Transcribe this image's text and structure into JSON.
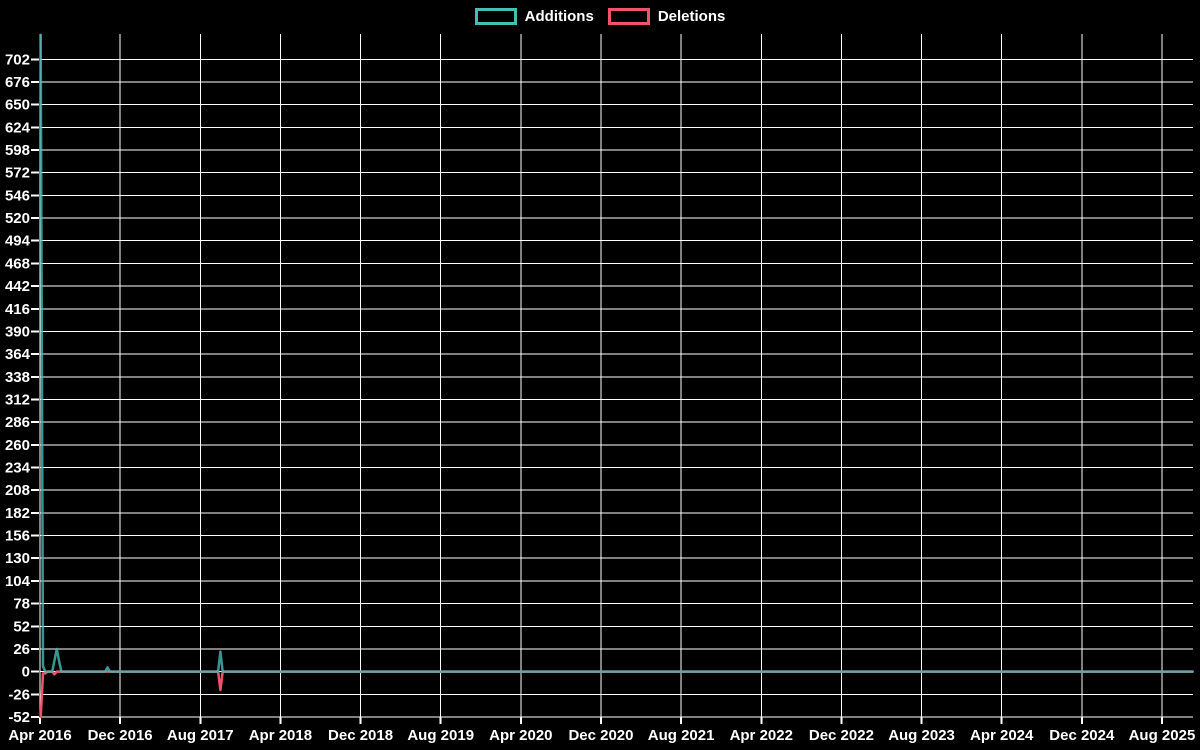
{
  "legend": {
    "items": [
      {
        "label": "Additions",
        "color": "#46BCB6"
      },
      {
        "label": "Deletions",
        "color": "#F1536B"
      }
    ]
  },
  "chart_data": {
    "type": "line",
    "title": "",
    "xlabel": "",
    "ylabel": "",
    "background_color": "#000000",
    "grid": true,
    "grid_color": "#FFFFFF",
    "tick_label_color": "#FFFFFF",
    "legend_position": "top-center",
    "x_axis": {
      "start": "2016-04-01",
      "tick_interval_months": 8,
      "tick_labels": [
        "Apr 2016",
        "Dec 2016",
        "Aug 2017",
        "Apr 2018",
        "Dec 2018",
        "Aug 2019",
        "Apr 2020",
        "Dec 2020",
        "Aug 2021",
        "Apr 2022",
        "Dec 2022",
        "Aug 2023",
        "Apr 2024",
        "Dec 2024",
        "Aug 2025"
      ]
    },
    "y_axis": {
      "min": -52,
      "max": 731,
      "tick_step": 26,
      "tick_labels": [
        702,
        676,
        650,
        624,
        598,
        572,
        546,
        520,
        494,
        468,
        442,
        416,
        390,
        364,
        338,
        312,
        286,
        260,
        234,
        208,
        182,
        156,
        130,
        104,
        78,
        52,
        26,
        0,
        -26,
        -52
      ]
    },
    "series": [
      {
        "name": "Additions",
        "color": "#46BCB6",
        "points": [
          [
            "2016-04-03",
            730
          ],
          [
            "2016-04-10",
            6
          ],
          [
            "2016-04-17",
            0
          ],
          [
            "2016-05-08",
            0
          ],
          [
            "2016-05-22",
            26
          ],
          [
            "2016-05-29",
            12
          ],
          [
            "2016-06-05",
            0
          ],
          [
            "2016-10-16",
            0
          ],
          [
            "2016-10-23",
            5
          ],
          [
            "2016-10-30",
            0
          ],
          [
            "2017-09-24",
            0
          ],
          [
            "2017-10-01",
            23
          ],
          [
            "2017-10-08",
            0
          ],
          [
            "2025-11-02",
            0
          ]
        ]
      },
      {
        "name": "Deletions",
        "color": "#F1536B",
        "points": [
          [
            "2016-04-03",
            -52
          ],
          [
            "2016-04-10",
            -2
          ],
          [
            "2016-04-17",
            -2
          ],
          [
            "2016-04-24",
            0
          ],
          [
            "2016-05-08",
            0
          ],
          [
            "2016-05-15",
            -3
          ],
          [
            "2016-05-22",
            0
          ],
          [
            "2017-09-24",
            0
          ],
          [
            "2017-10-01",
            -21
          ],
          [
            "2017-10-08",
            0
          ],
          [
            "2025-11-02",
            0
          ]
        ]
      }
    ]
  }
}
